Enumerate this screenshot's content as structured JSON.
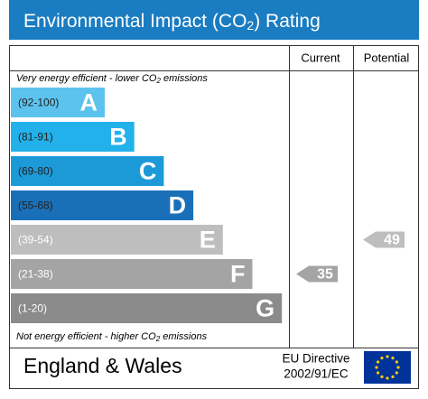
{
  "header": {
    "title": [
      "Environmental Impact (CO",
      "2",
      ") Rating"
    ]
  },
  "columns": {
    "current": "Current",
    "potential": "Potential"
  },
  "top_note": [
    "Very energy efficient - lower CO",
    "2",
    " emissions"
  ],
  "bottom_note": [
    "Not energy efficient - higher CO",
    "2",
    " emissions"
  ],
  "bands": [
    {
      "range": "(92-100)",
      "letter": "A",
      "color": "#5cc3ee"
    },
    {
      "range": "(81-91)",
      "letter": "B",
      "color": "#22b1ea"
    },
    {
      "range": "(69-80)",
      "letter": "C",
      "color": "#1c9ad8"
    },
    {
      "range": "(55-68)",
      "letter": "D",
      "color": "#1a70b8"
    },
    {
      "range": "(39-54)",
      "letter": "E",
      "color": "#bebebe"
    },
    {
      "range": "(21-38)",
      "letter": "F",
      "color": "#a4a4a4"
    },
    {
      "range": "(1-20)",
      "letter": "G",
      "color": "#8b8b8b"
    }
  ],
  "ratings": {
    "current": 35,
    "potential": 49
  },
  "footer": {
    "region": "England & Wales",
    "directive": [
      "EU Directive",
      "2002/91/EC"
    ]
  }
}
